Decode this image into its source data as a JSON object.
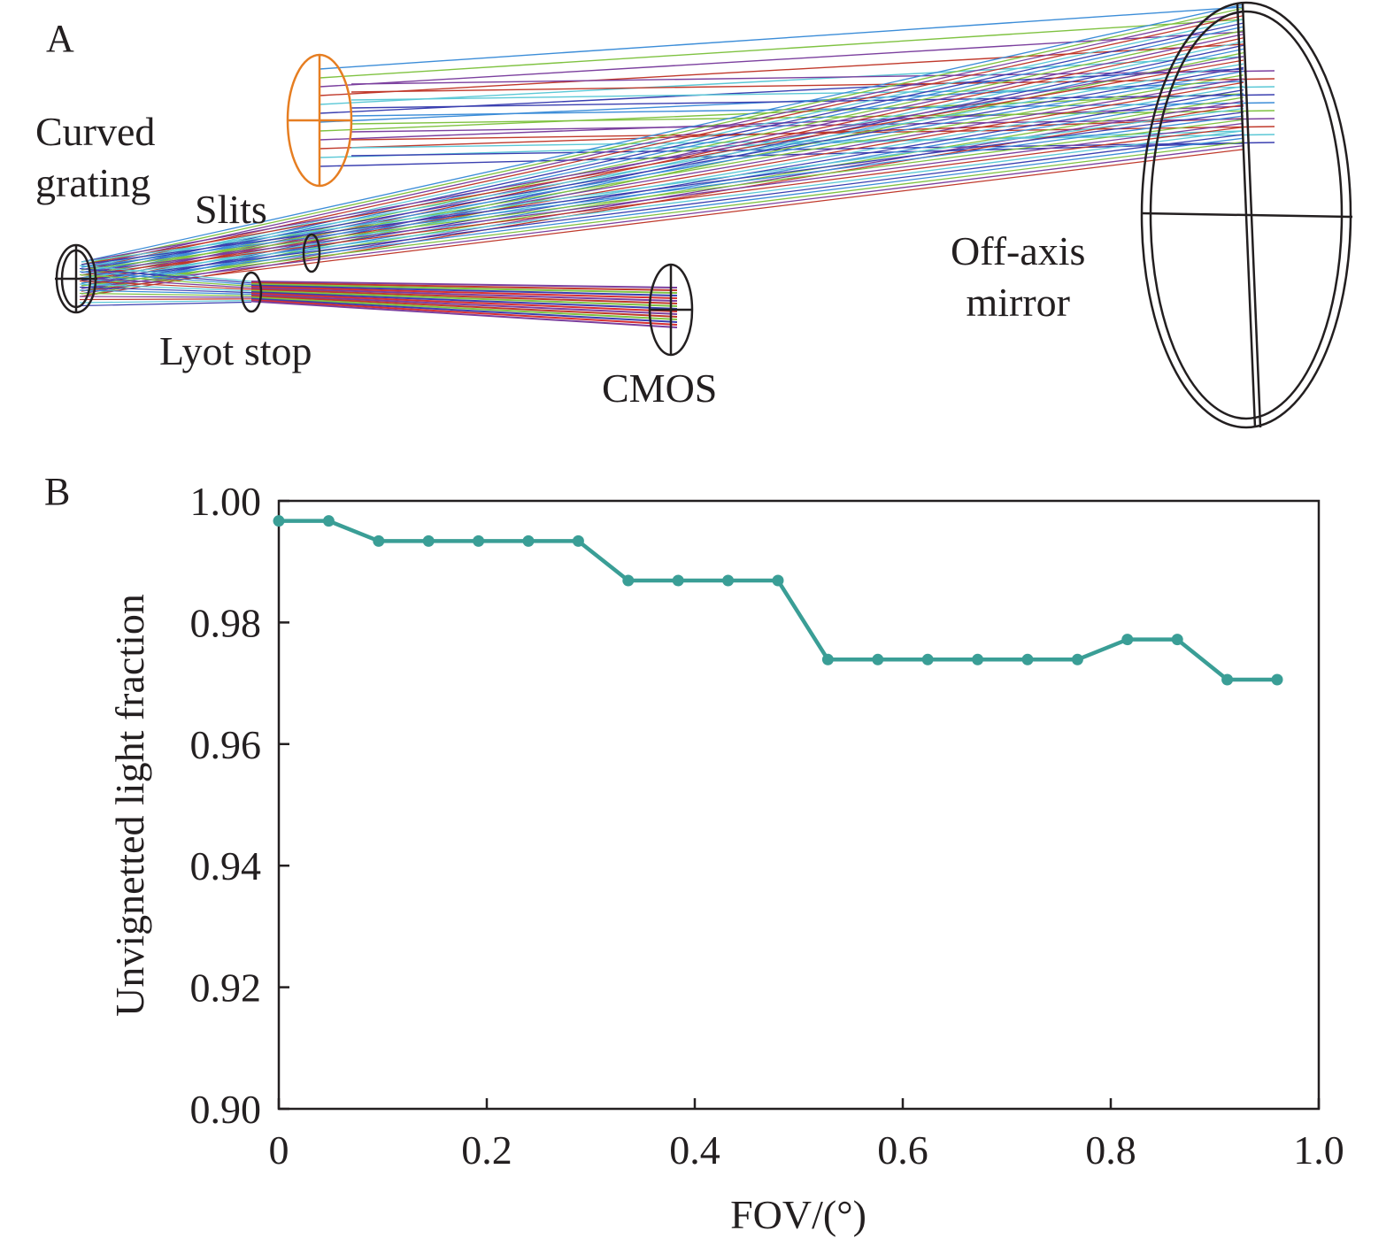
{
  "panel_a": {
    "label": "A",
    "components": {
      "curved_grating": [
        "Curved",
        "grating"
      ],
      "slits": "Slits",
      "off_axis_mirror": [
        "Off-axis",
        "mirror"
      ],
      "lyot_stop": "Lyot stop",
      "cmos": "CMOS"
    },
    "ray_colors": [
      "#3c8dd8",
      "#7fc241",
      "#7b3f9e",
      "#c0392b",
      "#5bc8d6",
      "#3a3fb0"
    ],
    "collimator_color": "#e67e22"
  },
  "panel_b": {
    "label": "B"
  },
  "chart_data": {
    "type": "line",
    "xlabel": "FOV/(°)",
    "ylabel": "Unvignetted light fraction",
    "xlim": [
      0,
      1.0
    ],
    "ylim": [
      0.9,
      1.0
    ],
    "xticks": [
      0,
      0.2,
      0.4,
      0.6,
      0.8,
      1.0
    ],
    "xtick_labels": [
      "0",
      "0.2",
      "0.4",
      "0.6",
      "0.8",
      "1.0"
    ],
    "yticks": [
      0.9,
      0.92,
      0.94,
      0.96,
      0.98,
      1.0
    ],
    "ytick_labels": [
      "0.90",
      "0.92",
      "0.94",
      "0.96",
      "0.98",
      "1.00"
    ],
    "grid": false,
    "series": [
      {
        "color": "#3a9e96",
        "x": [
          0,
          0.048,
          0.096,
          0.144,
          0.192,
          0.24,
          0.288,
          0.336,
          0.384,
          0.432,
          0.48,
          0.528,
          0.576,
          0.624,
          0.672,
          0.72,
          0.768,
          0.816,
          0.864,
          0.912,
          0.96
        ],
        "y": [
          0.9967,
          0.9967,
          0.9934,
          0.9934,
          0.9934,
          0.9934,
          0.9934,
          0.9869,
          0.9869,
          0.9869,
          0.9869,
          0.9739,
          0.9739,
          0.9739,
          0.9739,
          0.9739,
          0.9739,
          0.9772,
          0.9772,
          0.9706,
          0.9706
        ]
      }
    ]
  }
}
